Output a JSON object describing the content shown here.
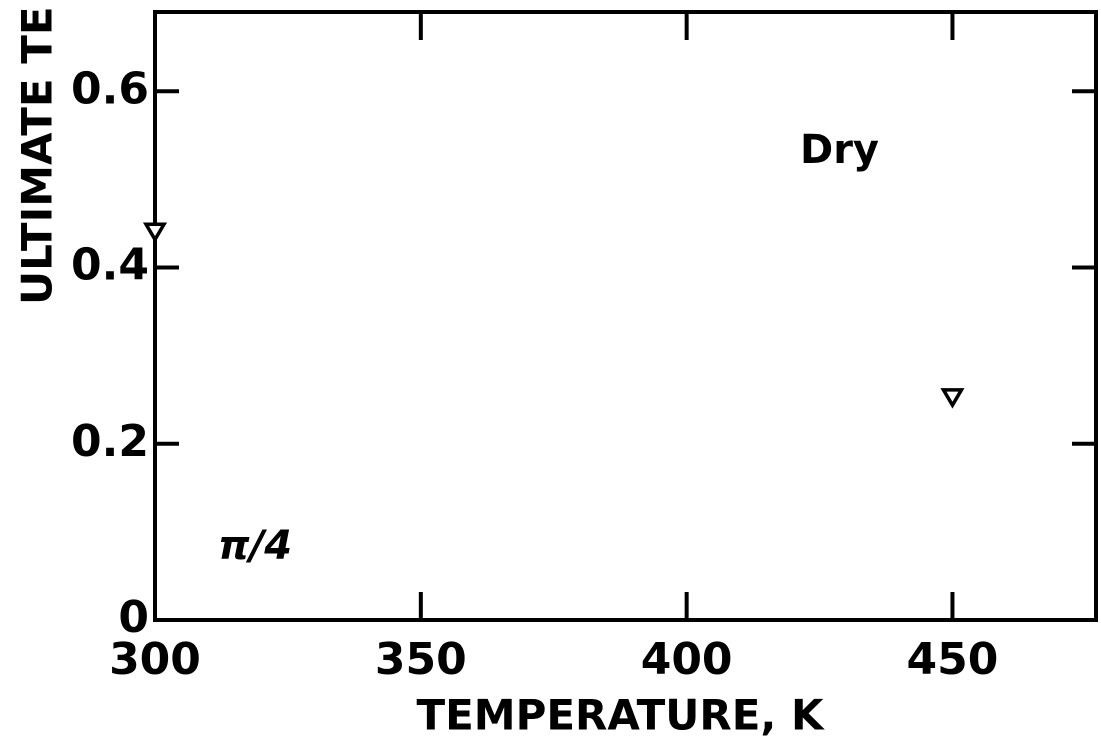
{
  "chart_data": {
    "type": "scatter",
    "xlabel": "TEMPERATURE, K",
    "ylabel": "ULTIMATE TE",
    "annotations": [
      "Dry",
      "π/4"
    ],
    "x": [
      300,
      450
    ],
    "values": [
      0.441,
      0.253
    ],
    "marker": "triangle-down",
    "color": "#000000",
    "xlim": [
      300,
      477
    ],
    "ylim": [
      0,
      0.69
    ],
    "xticks": [
      300,
      350,
      400,
      450
    ],
    "yticks": [
      0,
      0.2,
      0.4,
      0.6
    ]
  }
}
